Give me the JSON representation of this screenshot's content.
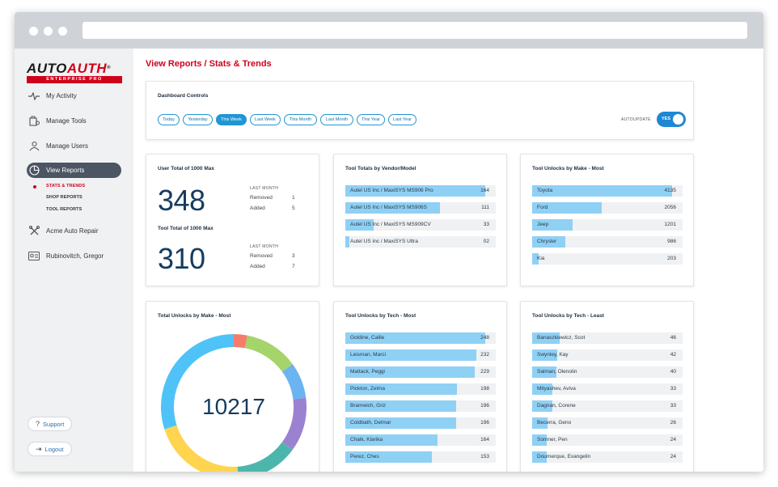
{
  "brand": {
    "name_a": "AUTO",
    "name_b": "AUTH",
    "reg": "®",
    "subtitle": "ENTERPRISE PRO"
  },
  "sidebar": {
    "items": [
      {
        "label": "My Activity",
        "icon": "activity-icon"
      },
      {
        "label": "Manage Tools",
        "icon": "tools-icon"
      },
      {
        "label": "Manage Users",
        "icon": "users-icon"
      },
      {
        "label": "View Reports",
        "icon": "reports-icon"
      },
      {
        "label": "Acme Auto Repair",
        "icon": "wrench-icon"
      },
      {
        "label": "Rubinovitch, Gregor",
        "icon": "id-card-icon"
      }
    ],
    "subitems": [
      {
        "label": "STATS & TRENDS",
        "active": true
      },
      {
        "label": "SHOP REPORTS",
        "active": false
      },
      {
        "label": "TOOL REPORTS",
        "active": false
      }
    ],
    "support_label": "Support",
    "logout_label": "Logout"
  },
  "page": {
    "title": "View Reports / Stats & Trends"
  },
  "controls": {
    "title": "Dashboard Controls",
    "ranges": [
      "Today",
      "Yesterday",
      "This Week",
      "Last Week",
      "This Month",
      "Last Month",
      "This Year",
      "Last Year"
    ],
    "active_range": "This Week",
    "autoupdate_label": "AUTOUPDATE",
    "toggle_label": "YES",
    "toggle_on": true
  },
  "user_totals": {
    "user_title": "User Total of 1000 Max",
    "user_total": "348",
    "user_period": "LAST MONTH",
    "user_removed_label": "Removed",
    "user_removed": "1",
    "user_added_label": "Added",
    "user_added": "5",
    "tool_title": "Tool Total of 1000 Max",
    "tool_total": "310",
    "tool_period": "LAST MONTH",
    "tool_removed_label": "Removed",
    "tool_removed": "3",
    "tool_added_label": "Added",
    "tool_added": "7"
  },
  "vendor_totals": {
    "title": "Tool Totals by Vendor/Model",
    "max": 164,
    "rows": [
      {
        "label": "Autel US Inc / MaxiSYS MS906 Pro",
        "value": "164",
        "num": 164
      },
      {
        "label": "Autel US Inc / MaxiSYS MS906S",
        "value": "111",
        "num": 111
      },
      {
        "label": "Autel US Inc / MaxiSYS MS909CV",
        "value": "33",
        "num": 33
      },
      {
        "label": "Autel US Inc / MaxiSYS Ultra",
        "value": "02",
        "num": 2
      }
    ]
  },
  "make_unlocks": {
    "title": "Tool Unlocks by Make - Most",
    "max": 4135,
    "rows": [
      {
        "label": "Toyota",
        "value": "4135",
        "num": 4135
      },
      {
        "label": "Ford",
        "value": "2056",
        "num": 2056
      },
      {
        "label": "Jeep",
        "value": "1201",
        "num": 1201
      },
      {
        "label": "Chrysler",
        "value": "986",
        "num": 986
      },
      {
        "label": "Kia",
        "value": "203",
        "num": 203
      }
    ]
  },
  "total_unlocks": {
    "title": "Total Unlocks by Make - Most",
    "total": "10217"
  },
  "chart_data": {
    "type": "pie",
    "title": "Total Unlocks by Make - Most",
    "center_value": 10217,
    "slices": [
      {
        "color": "#f47c6c",
        "fraction": 0.03
      },
      {
        "color": "#a5d46a",
        "fraction": 0.12
      },
      {
        "color": "#6cb4f0",
        "fraction": 0.08
      },
      {
        "color": "#9b82d0",
        "fraction": 0.12
      },
      {
        "color": "#4db6ac",
        "fraction": 0.14
      },
      {
        "color": "#ffd54f",
        "fraction": 0.21
      },
      {
        "color": "#4fc3f7",
        "fraction": 0.3
      }
    ]
  },
  "tech_most": {
    "title": "Tool Unlocks by Tech - Most",
    "max": 248,
    "rows": [
      {
        "label": "Goldine, Callie",
        "value": "248",
        "num": 248
      },
      {
        "label": "Leisman, Marci",
        "value": "232",
        "num": 232
      },
      {
        "label": "Mattack, Peggi",
        "value": "229",
        "num": 229
      },
      {
        "label": "Pickton, Zelma",
        "value": "198",
        "num": 198
      },
      {
        "label": "Bramwich, Griz",
        "value": "196",
        "num": 196
      },
      {
        "label": "Coldbath, Delmar",
        "value": "196",
        "num": 196
      },
      {
        "label": "Chalk, Klarika",
        "value": "164",
        "num": 164
      },
      {
        "label": "Perez, Ches",
        "value": "153",
        "num": 153
      }
    ]
  },
  "tech_least": {
    "title": "Tool Unlocks by Tech - Least",
    "max": 248,
    "rows": [
      {
        "label": "Banaszkiewicz, Scot",
        "value": "46",
        "num": 46
      },
      {
        "label": "Swynley, Kay",
        "value": "42",
        "num": 42
      },
      {
        "label": "Salman, Olenolin",
        "value": "40",
        "num": 40
      },
      {
        "label": "Mityashev, Aviva",
        "value": "33",
        "num": 33
      },
      {
        "label": "Dagnan, Corene",
        "value": "33",
        "num": 33
      },
      {
        "label": "Becerra, Geno",
        "value": "26",
        "num": 26
      },
      {
        "label": "Somner, Pen",
        "value": "24",
        "num": 24
      },
      {
        "label": "Doumerque, Evangelin",
        "value": "24",
        "num": 24
      }
    ]
  }
}
